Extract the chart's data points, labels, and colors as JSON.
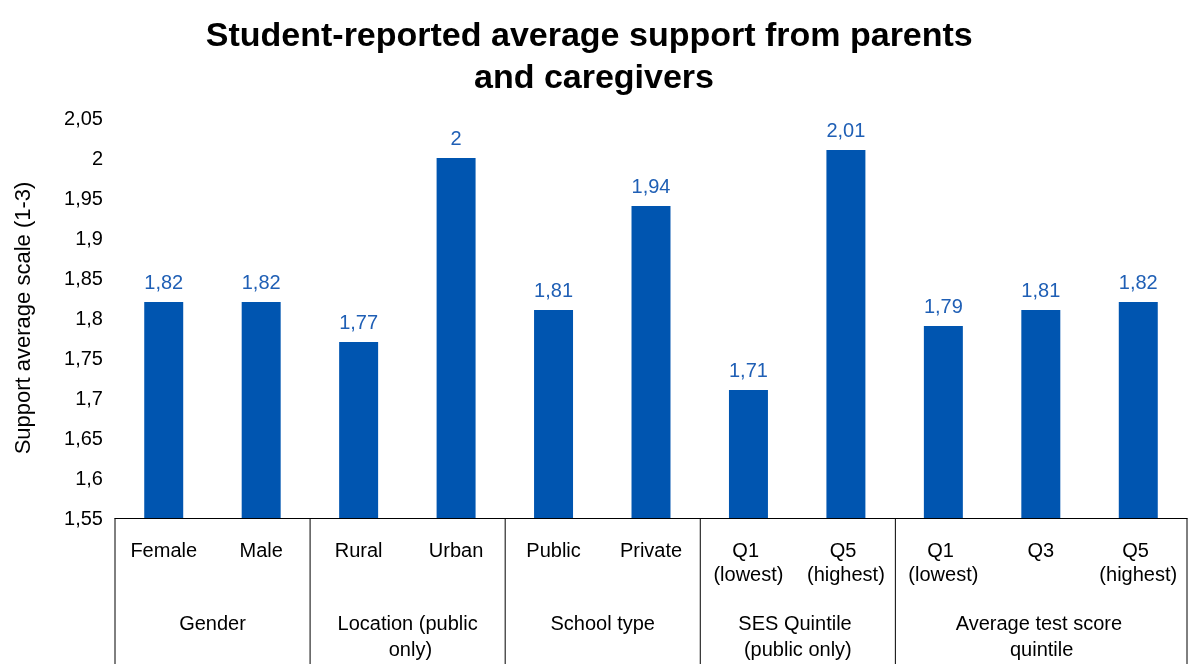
{
  "chart_data": {
    "type": "bar",
    "title": "Student-reported average support from parents and caregivers",
    "ylabel": "Support average scale (1-3)",
    "categories": [
      "Female",
      "Male",
      "Rural",
      "Urban",
      "Public",
      "Private",
      "Q1 (lowest)",
      "Q5 (highest)",
      "Q1 (lowest)",
      "Q3",
      "Q5 (highest)"
    ],
    "values": [
      1.82,
      1.82,
      1.77,
      2,
      1.81,
      1.94,
      1.71,
      2.01,
      1.79,
      1.81,
      1.82
    ],
    "value_labels": [
      "1,82",
      "1,82",
      "1,77",
      "2",
      "1,81",
      "1,94",
      "1,71",
      "2,01",
      "1,79",
      "1,81",
      "1,82"
    ],
    "color": "#0055b0",
    "ylim": [
      1.55,
      2.05
    ],
    "yticks": [
      {
        "value": 1.55,
        "label": "1,55"
      },
      {
        "value": 1.6,
        "label": "1,6"
      },
      {
        "value": 1.65,
        "label": "1,65"
      },
      {
        "value": 1.7,
        "label": "1,7"
      },
      {
        "value": 1.75,
        "label": "1,75"
      },
      {
        "value": 1.8,
        "label": "1,8"
      },
      {
        "value": 1.85,
        "label": "1,85"
      },
      {
        "value": 1.9,
        "label": "1,9"
      },
      {
        "value": 1.95,
        "label": "1,95"
      },
      {
        "value": 2,
        "label": "2"
      },
      {
        "value": 2.05,
        "label": "2,05"
      }
    ],
    "annotations": [
      "Gender",
      "Location (public only)",
      "School type",
      "SES Quintile (public only)",
      "Average test score quintile"
    ],
    "grid": false
  }
}
